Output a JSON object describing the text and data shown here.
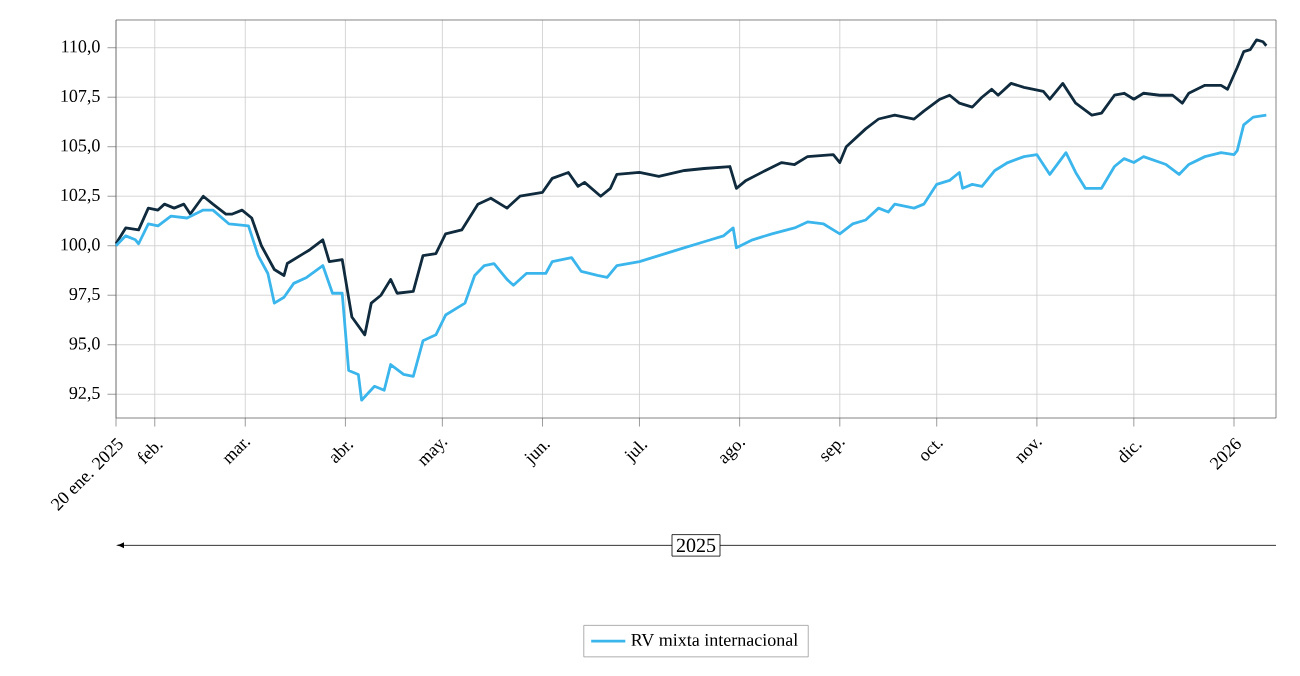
{
  "chart_data": {
    "type": "line",
    "xlim": [
      "2025-01-20",
      "2026-01-14"
    ],
    "ylim": [
      91.3,
      111.4
    ],
    "xticks": [
      {
        "value": "2025-01-20",
        "label": "20 ene. 2025"
      },
      {
        "value": "2025-02-01",
        "label": "feb."
      },
      {
        "value": "2025-03-01",
        "label": "mar."
      },
      {
        "value": "2025-04-01",
        "label": "abr."
      },
      {
        "value": "2025-05-01",
        "label": "may."
      },
      {
        "value": "2025-06-01",
        "label": "jun."
      },
      {
        "value": "2025-07-01",
        "label": "jul."
      },
      {
        "value": "2025-08-01",
        "label": "ago."
      },
      {
        "value": "2025-09-01",
        "label": "sep."
      },
      {
        "value": "2025-10-01",
        "label": "oct."
      },
      {
        "value": "2025-11-01",
        "label": "nov."
      },
      {
        "value": "2025-12-01",
        "label": "dic."
      },
      {
        "value": "2026-01-01",
        "label": "2026"
      }
    ],
    "yticks": [
      {
        "value": 92.5,
        "label": "92,5"
      },
      {
        "value": 95,
        "label": "95,0"
      },
      {
        "value": 97.5,
        "label": "97,5"
      },
      {
        "value": 100,
        "label": "100,0"
      },
      {
        "value": 102.5,
        "label": "102,5"
      },
      {
        "value": 105,
        "label": "105,0"
      },
      {
        "value": 107.5,
        "label": "107,5"
      },
      {
        "value": 110,
        "label": "110,0"
      }
    ],
    "grid": true,
    "legend": "bottom",
    "marker": "none",
    "line_style": "solid",
    "annotations": [
      "2025"
    ],
    "series": [
      {
        "color": "#0f2b3d",
        "x": [
          "2025-01-20",
          "2025-01-23",
          "2025-01-27",
          "2025-01-30",
          "2025-02-02",
          "2025-02-04",
          "2025-02-07",
          "2025-02-10",
          "2025-02-12",
          "2025-02-16",
          "2025-02-19",
          "2025-02-23",
          "2025-02-25",
          "2025-02-28",
          "2025-03-03",
          "2025-03-06",
          "2025-03-10",
          "2025-03-13",
          "2025-03-14",
          "2025-03-19",
          "2025-03-21",
          "2025-03-25",
          "2025-03-27",
          "2025-03-31",
          "2025-04-03",
          "2025-04-07",
          "2025-04-09",
          "2025-04-12",
          "2025-04-15",
          "2025-04-17",
          "2025-04-22",
          "2025-04-25",
          "2025-04-29",
          "2025-05-02",
          "2025-05-07",
          "2025-05-12",
          "2025-05-16",
          "2025-05-21",
          "2025-05-25",
          "2025-06-01",
          "2025-06-04",
          "2025-06-09",
          "2025-06-12",
          "2025-06-14",
          "2025-06-19",
          "2025-06-22",
          "2025-06-24",
          "2025-07-01",
          "2025-07-07",
          "2025-07-15",
          "2025-07-21",
          "2025-07-29",
          "2025-07-31",
          "2025-08-03",
          "2025-08-09",
          "2025-08-14",
          "2025-08-18",
          "2025-08-22",
          "2025-08-30",
          "2025-09-01",
          "2025-09-03",
          "2025-09-09",
          "2025-09-13",
          "2025-09-18",
          "2025-09-24",
          "2025-09-27",
          "2025-10-02",
          "2025-10-05",
          "2025-10-08",
          "2025-10-12",
          "2025-10-15",
          "2025-10-18",
          "2025-10-20",
          "2025-10-24",
          "2025-10-28",
          "2025-11-03",
          "2025-11-05",
          "2025-11-09",
          "2025-11-13",
          "2025-11-18",
          "2025-11-21",
          "2025-11-25",
          "2025-11-28",
          "2025-12-01",
          "2025-12-04",
          "2025-12-09",
          "2025-12-13",
          "2025-12-16",
          "2025-12-18",
          "2025-12-23",
          "2025-12-28",
          "2025-12-30",
          "2026-01-02",
          "2026-01-04",
          "2026-01-06",
          "2026-01-08",
          "2026-01-10",
          "2026-01-11"
        ],
        "values": [
          100.1,
          100.9,
          100.8,
          101.9,
          101.8,
          102.1,
          101.9,
          102.1,
          101.6,
          102.5,
          102.1,
          101.6,
          101.6,
          101.8,
          101.4,
          100.0,
          98.8,
          98.5,
          99.1,
          99.6,
          99.8,
          100.3,
          99.2,
          99.3,
          96.4,
          95.5,
          97.1,
          97.5,
          98.3,
          97.6,
          97.7,
          99.5,
          99.6,
          100.6,
          100.8,
          102.1,
          102.4,
          101.9,
          102.5,
          102.7,
          103.4,
          103.7,
          103.0,
          103.2,
          102.5,
          102.9,
          103.6,
          103.7,
          103.5,
          103.8,
          103.9,
          104.0,
          102.9,
          103.3,
          103.8,
          104.2,
          104.1,
          104.5,
          104.6,
          104.2,
          105.0,
          105.9,
          106.4,
          106.6,
          106.4,
          106.8,
          107.4,
          107.6,
          107.2,
          107.0,
          107.5,
          107.9,
          107.6,
          108.2,
          108.0,
          107.8,
          107.4,
          108.2,
          107.2,
          106.6,
          106.7,
          107.6,
          107.7,
          107.4,
          107.7,
          107.6,
          107.6,
          107.2,
          107.7,
          108.1,
          108.1,
          107.9,
          109.0,
          109.8,
          109.9,
          110.4,
          110.3,
          110.1
        ]
      },
      {
        "name": "RV mixta internacional",
        "color": "#3bb6ec",
        "x": [
          "2025-01-20",
          "2025-01-23",
          "2025-01-26",
          "2025-01-27",
          "2025-01-30",
          "2025-02-02",
          "2025-02-06",
          "2025-02-11",
          "2025-02-16",
          "2025-02-19",
          "2025-02-24",
          "2025-03-02",
          "2025-03-05",
          "2025-03-08",
          "2025-03-10",
          "2025-03-13",
          "2025-03-16",
          "2025-03-20",
          "2025-03-25",
          "2025-03-28",
          "2025-03-31",
          "2025-04-02",
          "2025-04-05",
          "2025-04-06",
          "2025-04-10",
          "2025-04-13",
          "2025-04-15",
          "2025-04-19",
          "2025-04-22",
          "2025-04-25",
          "2025-04-29",
          "2025-05-02",
          "2025-05-08",
          "2025-05-11",
          "2025-05-14",
          "2025-05-17",
          "2025-05-21",
          "2025-05-23",
          "2025-05-27",
          "2025-06-02",
          "2025-06-04",
          "2025-06-10",
          "2025-06-13",
          "2025-06-18",
          "2025-06-21",
          "2025-06-24",
          "2025-07-01",
          "2025-07-07",
          "2025-07-15",
          "2025-07-21",
          "2025-07-27",
          "2025-07-30",
          "2025-07-31",
          "2025-08-05",
          "2025-08-11",
          "2025-08-18",
          "2025-08-22",
          "2025-08-27",
          "2025-09-01",
          "2025-09-05",
          "2025-09-09",
          "2025-09-13",
          "2025-09-16",
          "2025-09-18",
          "2025-09-24",
          "2025-09-27",
          "2025-10-01",
          "2025-10-05",
          "2025-10-08",
          "2025-10-09",
          "2025-10-12",
          "2025-10-15",
          "2025-10-19",
          "2025-10-23",
          "2025-10-28",
          "2025-11-01",
          "2025-11-05",
          "2025-11-10",
          "2025-11-13",
          "2025-11-16",
          "2025-11-21",
          "2025-11-25",
          "2025-11-28",
          "2025-12-01",
          "2025-12-04",
          "2025-12-11",
          "2025-12-15",
          "2025-12-18",
          "2025-12-23",
          "2025-12-28",
          "2026-01-01",
          "2026-01-02",
          "2026-01-04",
          "2026-01-07",
          "2026-01-11"
        ],
        "values": [
          100.0,
          100.5,
          100.3,
          100.1,
          101.1,
          101.0,
          101.5,
          101.4,
          101.8,
          101.8,
          101.1,
          101.0,
          99.5,
          98.6,
          97.1,
          97.4,
          98.1,
          98.4,
          99.0,
          97.6,
          97.6,
          93.7,
          93.5,
          92.2,
          92.9,
          92.7,
          94.0,
          93.5,
          93.4,
          95.2,
          95.5,
          96.5,
          97.1,
          98.5,
          99.0,
          99.1,
          98.3,
          98.0,
          98.6,
          98.6,
          99.2,
          99.4,
          98.7,
          98.5,
          98.4,
          99.0,
          99.2,
          99.5,
          99.9,
          100.2,
          100.5,
          100.9,
          99.9,
          100.3,
          100.6,
          100.9,
          101.2,
          101.1,
          100.6,
          101.1,
          101.3,
          101.9,
          101.7,
          102.1,
          101.9,
          102.1,
          103.1,
          103.3,
          103.7,
          102.9,
          103.1,
          103.0,
          103.8,
          104.2,
          104.5,
          104.6,
          103.6,
          104.7,
          103.7,
          102.9,
          102.9,
          104.0,
          104.4,
          104.2,
          104.5,
          104.1,
          103.6,
          104.1,
          104.5,
          104.7,
          104.6,
          104.8,
          106.1,
          106.5,
          106.6
        ]
      }
    ]
  }
}
